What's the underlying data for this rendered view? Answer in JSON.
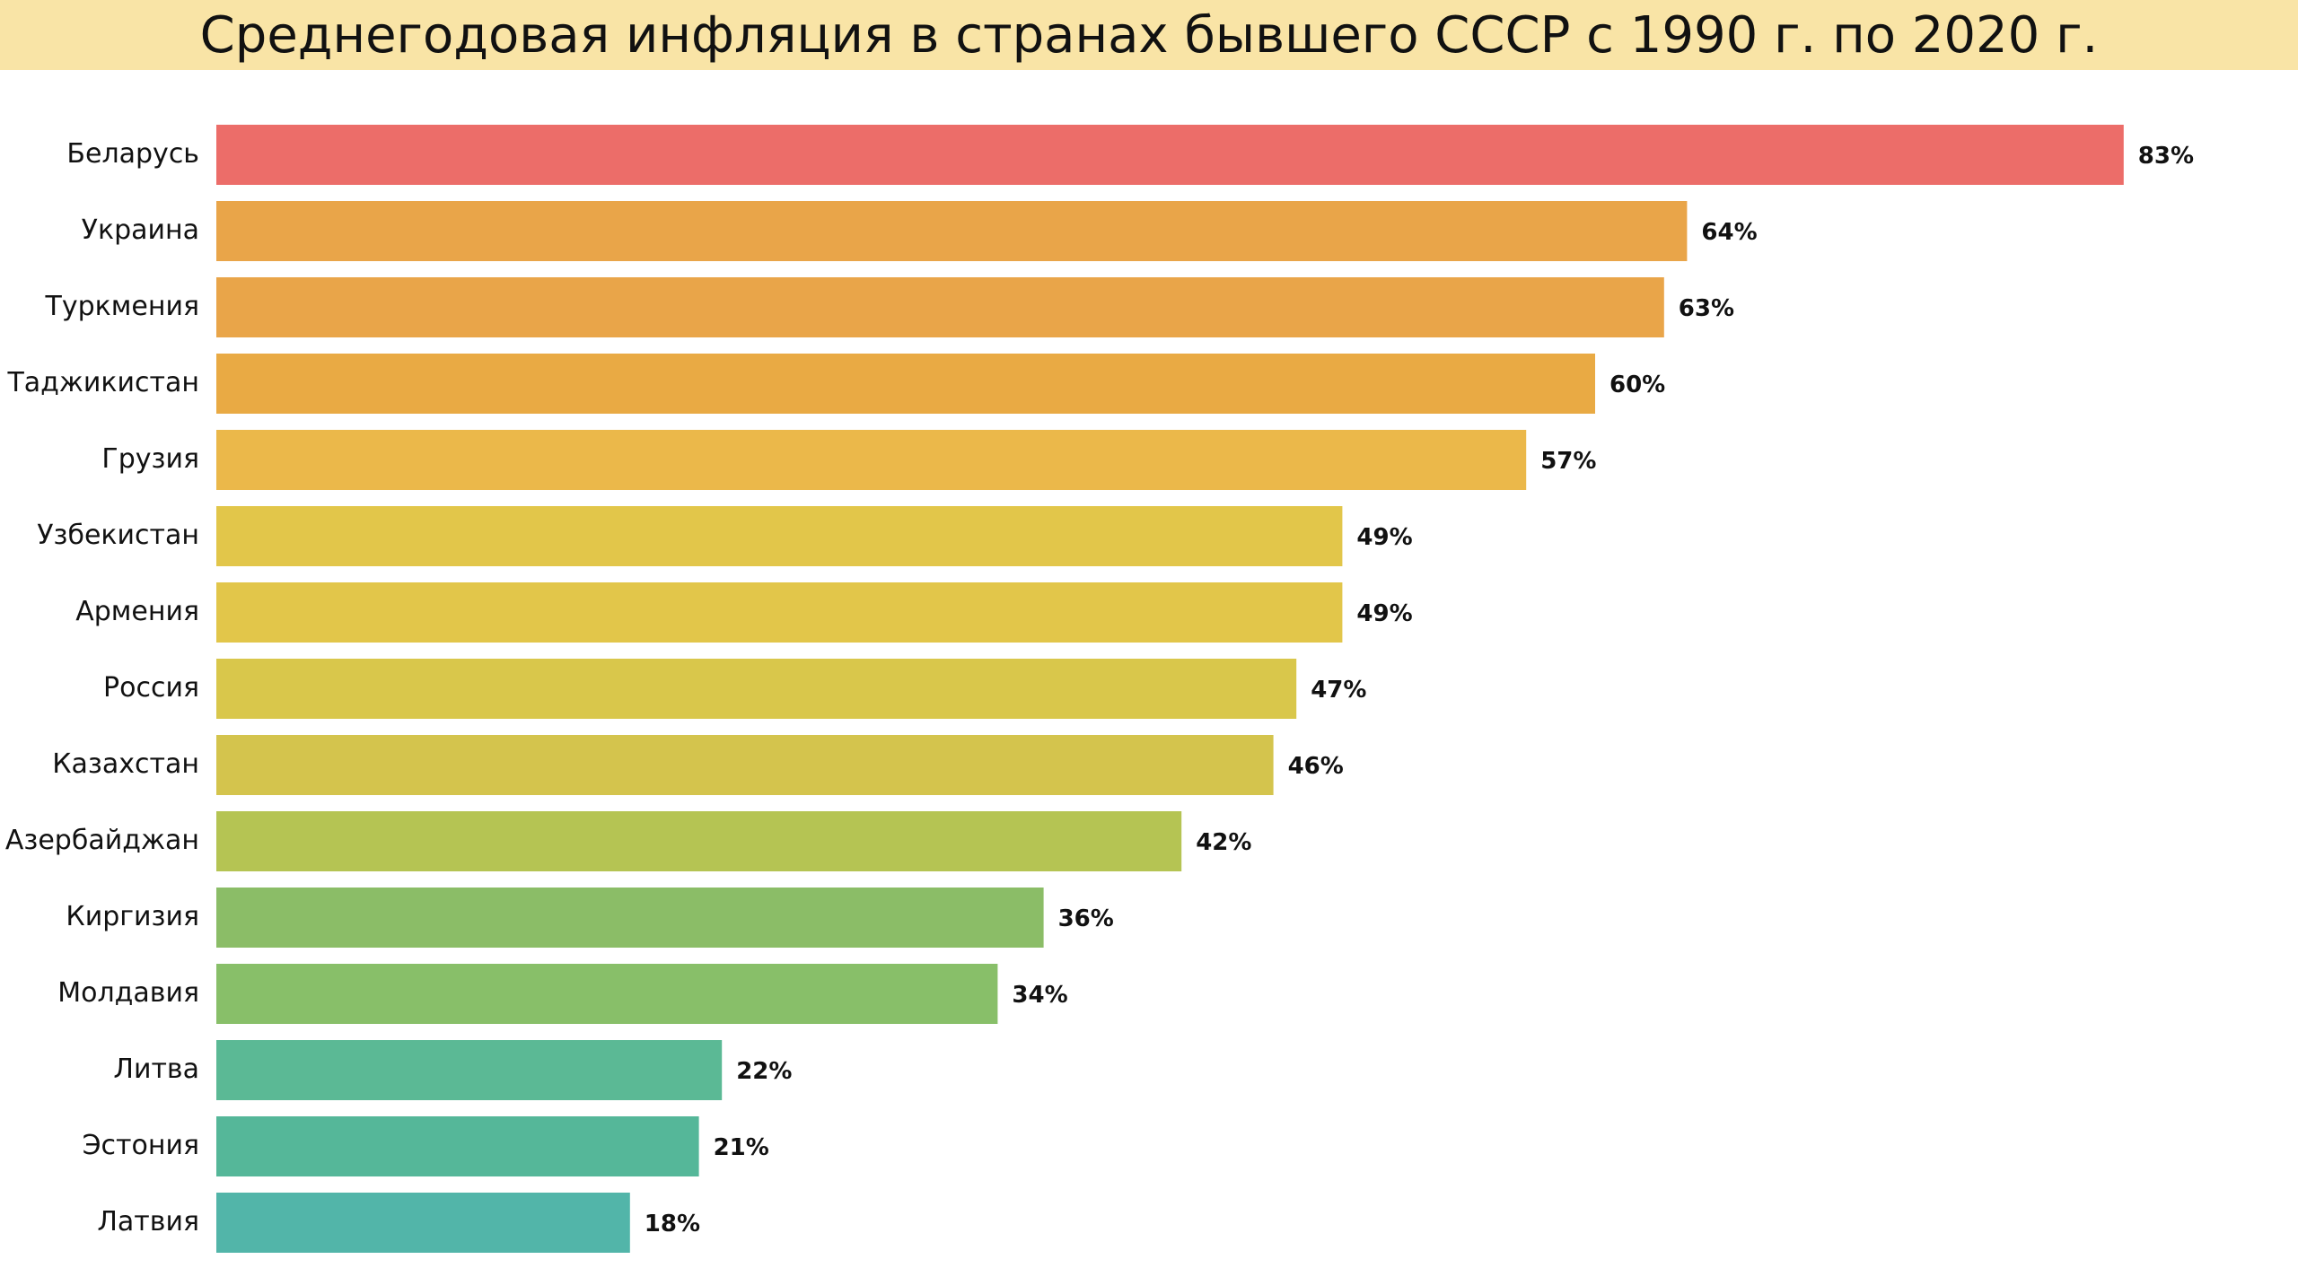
{
  "chart_data": {
    "type": "bar",
    "orientation": "horizontal",
    "title": "Среднегодовая инфляция в странах бывшего СССР с 1990 г. по 2020 г.",
    "categories": [
      "Беларусь",
      "Украина",
      "Туркмения",
      "Таджикистан",
      "Грузия",
      "Узбекистан",
      "Армения",
      "Россия",
      "Казахстан",
      "Азербайджан",
      "Киргизия",
      "Молдавия",
      "Литва",
      "Эстония",
      "Латвия"
    ],
    "values": [
      83,
      64,
      63,
      60,
      57,
      49,
      49,
      47,
      46,
      42,
      36,
      34,
      22,
      21,
      18
    ],
    "value_labels": [
      "83%",
      "64%",
      "63%",
      "60%",
      "57%",
      "49%",
      "49%",
      "47%",
      "46%",
      "42%",
      "36%",
      "34%",
      "22%",
      "21%",
      "18%"
    ],
    "colors": [
      "#ec6d69",
      "#e9a549",
      "#e9a549",
      "#e9aa44",
      "#ebb84a",
      "#e2c64a",
      "#e2c64a",
      "#d9c74b",
      "#d4c44d",
      "#b5c453",
      "#8bbd67",
      "#88bf69",
      "#5bb995",
      "#55b799",
      "#52b5a9"
    ],
    "xlim": [
      0,
      85
    ],
    "grid": false,
    "legend": "none"
  },
  "style": {
    "title_background": "#f9e4a6",
    "background": "#ffffff"
  }
}
